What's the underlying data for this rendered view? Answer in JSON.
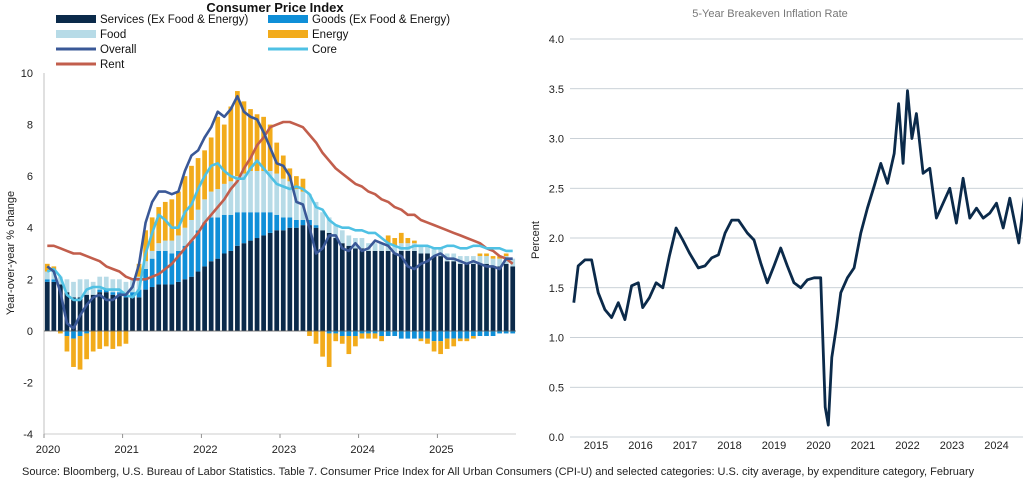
{
  "chart_data": [
    {
      "type": "bar",
      "title": "Consumer Price Index",
      "ylabel": "Year-over-year % change",
      "xlabel": "",
      "ylim": [
        -4,
        10
      ],
      "yticks": [
        -4,
        -2,
        0,
        2,
        4,
        6,
        8,
        10
      ],
      "xticks": [
        "2020",
        "2021",
        "2022",
        "2023",
        "2024",
        "2025"
      ],
      "x_start": "2020-01",
      "legend": [
        {
          "name": "Services (Ex Food & Energy)",
          "kind": "bar",
          "color": "#0b2a4a"
        },
        {
          "name": "Goods (Ex Food & Energy)",
          "kind": "bar",
          "color": "#0f8fd8"
        },
        {
          "name": "Food",
          "kind": "bar",
          "color": "#b7dbe7"
        },
        {
          "name": "Energy",
          "kind": "bar",
          "color": "#f2ab1b"
        },
        {
          "name": "Overall",
          "kind": "line",
          "color": "#3a5897"
        },
        {
          "name": "Core",
          "kind": "line",
          "color": "#4fc1e4"
        },
        {
          "name": "Rent",
          "kind": "line",
          "color": "#c25e4c"
        }
      ],
      "stacked_series": [
        {
          "name": "Services (Ex Food & Energy)",
          "color": "#0b2a4a",
          "values": [
            1.9,
            1.9,
            1.8,
            1.5,
            1.3,
            1.3,
            1.4,
            1.4,
            1.5,
            1.5,
            1.4,
            1.4,
            1.3,
            1.3,
            1.3,
            1.6,
            1.7,
            1.8,
            1.8,
            1.8,
            1.9,
            2.0,
            2.1,
            2.3,
            2.5,
            2.7,
            2.8,
            3.0,
            3.1,
            3.3,
            3.4,
            3.5,
            3.6,
            3.7,
            3.8,
            3.9,
            3.9,
            4.0,
            4.0,
            4.1,
            4.1,
            4.0,
            3.9,
            3.8,
            3.6,
            3.4,
            3.3,
            3.2,
            3.2,
            3.1,
            3.1,
            3.1,
            3.1,
            3.0,
            3.1,
            3.1,
            3.1,
            3.0,
            3.0,
            2.9,
            2.9,
            2.7,
            2.7,
            2.6,
            2.6,
            2.6,
            2.6,
            2.6,
            2.5,
            2.5,
            2.6,
            2.5
          ]
        },
        {
          "name": "Goods (Ex Food & Energy)",
          "color": "#0f8fd8",
          "values": [
            0.1,
            0.1,
            0.0,
            -0.2,
            -0.3,
            -0.2,
            -0.1,
            0.0,
            0.1,
            0.1,
            0.1,
            0.1,
            0.1,
            0.2,
            0.3,
            0.8,
            1.1,
            1.3,
            1.3,
            1.2,
            1.2,
            1.3,
            1.4,
            1.6,
            1.7,
            1.7,
            1.6,
            1.5,
            1.4,
            1.3,
            1.2,
            1.1,
            1.0,
            0.9,
            0.8,
            0.6,
            0.5,
            0.4,
            0.3,
            0.2,
            0.2,
            0.1,
            0.0,
            -0.1,
            -0.1,
            -0.2,
            -0.2,
            -0.2,
            -0.1,
            -0.1,
            -0.1,
            -0.2,
            -0.2,
            -0.2,
            -0.3,
            -0.3,
            -0.3,
            -0.3,
            -0.3,
            -0.4,
            -0.4,
            -0.3,
            -0.3,
            -0.3,
            -0.3,
            -0.2,
            -0.2,
            -0.2,
            -0.2,
            -0.1,
            -0.1,
            -0.1
          ]
        },
        {
          "name": "Food",
          "color": "#b7dbe7",
          "values": [
            0.3,
            0.3,
            0.3,
            0.5,
            0.6,
            0.7,
            0.6,
            0.5,
            0.5,
            0.5,
            0.5,
            0.5,
            0.5,
            0.5,
            0.5,
            0.3,
            0.3,
            0.3,
            0.4,
            0.5,
            0.6,
            0.7,
            0.8,
            0.8,
            0.9,
            1.0,
            1.1,
            1.2,
            1.3,
            1.4,
            1.5,
            1.6,
            1.6,
            1.6,
            1.6,
            1.6,
            1.5,
            1.4,
            1.2,
            1.1,
            1.0,
            0.9,
            0.7,
            0.6,
            0.5,
            0.5,
            0.4,
            0.4,
            0.4,
            0.3,
            0.3,
            0.3,
            0.3,
            0.3,
            0.3,
            0.3,
            0.3,
            0.3,
            0.3,
            0.3,
            0.3,
            0.3,
            0.3,
            0.3,
            0.3,
            0.3,
            0.3,
            0.3,
            0.3,
            0.3,
            0.3,
            0.3
          ]
        },
        {
          "name": "Energy",
          "color": "#f2ab1b",
          "values": [
            0.3,
            0.2,
            -0.1,
            -0.6,
            -1.1,
            -1.3,
            -1.0,
            -0.8,
            -0.7,
            -0.6,
            -0.7,
            -0.6,
            -0.5,
            0.0,
            0.5,
            1.2,
            1.3,
            1.4,
            1.5,
            1.6,
            1.7,
            2.0,
            2.1,
            2.0,
            1.9,
            2.1,
            2.8,
            2.3,
            2.9,
            3.3,
            2.8,
            2.4,
            2.2,
            2.1,
            1.8,
            1.2,
            0.9,
            0.5,
            0.5,
            0.5,
            -0.2,
            -0.5,
            -1.0,
            -1.3,
            -0.3,
            -0.3,
            -0.7,
            -0.4,
            -0.2,
            -0.2,
            -0.2,
            -0.2,
            0.3,
            0.3,
            0.4,
            0.2,
            0.1,
            -0.1,
            -0.2,
            -0.4,
            -0.5,
            -0.4,
            -0.3,
            -0.1,
            -0.1,
            -0.1,
            0.1,
            0.1,
            0.1,
            0.1,
            0.1,
            0.0
          ]
        }
      ],
      "line_series": [
        {
          "name": "Overall",
          "color": "#3a5897",
          "values": [
            2.5,
            2.3,
            1.5,
            0.3,
            0.1,
            0.6,
            1.0,
            1.3,
            1.4,
            1.2,
            1.2,
            1.4,
            1.4,
            1.7,
            2.6,
            4.2,
            5.0,
            5.4,
            5.4,
            5.3,
            5.4,
            6.2,
            6.8,
            7.0,
            7.5,
            7.9,
            8.5,
            8.3,
            8.6,
            9.1,
            8.5,
            8.3,
            8.2,
            7.7,
            7.1,
            6.5,
            6.4,
            6.0,
            5.0,
            4.9,
            4.0,
            3.0,
            3.2,
            3.7,
            3.7,
            3.2,
            3.1,
            3.4,
            3.1,
            3.2,
            3.5,
            3.4,
            3.3,
            3.0,
            2.9,
            2.5,
            2.4,
            2.6,
            2.7,
            2.9,
            3.0,
            2.8,
            2.8,
            2.7,
            2.6,
            2.7,
            2.6,
            2.5,
            2.5,
            2.4,
            2.8,
            2.8
          ]
        },
        {
          "name": "Core",
          "color": "#4fc1e4",
          "values": [
            2.3,
            2.4,
            2.1,
            1.4,
            1.2,
            1.2,
            1.6,
            1.7,
            1.7,
            1.6,
            1.6,
            1.6,
            1.4,
            1.3,
            1.6,
            3.0,
            3.8,
            4.5,
            4.3,
            4.0,
            4.0,
            4.6,
            4.9,
            5.5,
            6.0,
            6.4,
            6.5,
            6.2,
            6.0,
            5.9,
            5.9,
            6.3,
            6.6,
            6.3,
            6.0,
            5.7,
            5.6,
            5.5,
            5.6,
            5.5,
            5.3,
            4.8,
            4.7,
            4.3,
            4.1,
            4.0,
            4.0,
            3.9,
            3.9,
            3.8,
            3.8,
            3.6,
            3.4,
            3.3,
            3.2,
            3.2,
            3.3,
            3.3,
            3.3,
            3.2,
            3.2,
            3.3,
            3.3,
            3.2,
            3.2,
            3.3,
            3.3,
            3.2,
            3.2,
            3.2,
            3.1,
            3.1
          ]
        },
        {
          "name": "Rent",
          "color": "#c25e4c",
          "values": [
            3.3,
            3.3,
            3.2,
            3.1,
            3.0,
            3.0,
            2.9,
            2.8,
            2.7,
            2.5,
            2.4,
            2.3,
            2.1,
            2.0,
            2.0,
            2.0,
            2.1,
            2.2,
            2.4,
            2.6,
            2.9,
            3.2,
            3.5,
            3.8,
            4.2,
            4.5,
            4.8,
            5.1,
            5.5,
            5.8,
            6.3,
            6.7,
            7.2,
            7.5,
            7.9,
            8.0,
            8.1,
            8.1,
            8.0,
            7.9,
            7.6,
            7.3,
            6.9,
            6.6,
            6.3,
            6.1,
            5.9,
            5.7,
            5.6,
            5.4,
            5.3,
            5.1,
            5.0,
            4.8,
            4.7,
            4.5,
            4.5,
            4.3,
            4.2,
            4.1,
            4.0,
            3.9,
            3.8,
            3.7,
            3.6,
            3.5,
            3.4,
            3.2,
            3.1,
            2.9,
            2.8,
            2.6
          ]
        }
      ]
    },
    {
      "type": "line",
      "title": "5-Year Breakeven Inflation Rate",
      "xlabel": "",
      "ylabel": "Percent",
      "ylim": [
        0.0,
        4.0
      ],
      "yticks": [
        "0.0",
        "0.5",
        "1.0",
        "1.5",
        "2.0",
        "2.5",
        "3.0",
        "3.5",
        "4.0"
      ],
      "xticks": [
        "2015",
        "2016",
        "2017",
        "2018",
        "2019",
        "2020",
        "2021",
        "2022",
        "2023",
        "2024"
      ],
      "grid": "horizontal",
      "color": "#0b2a4a",
      "series": [
        {
          "x": [
            2014.5,
            2014.6,
            2014.75,
            2014.9,
            2015.05,
            2015.2,
            2015.35,
            2015.5,
            2015.65,
            2015.8,
            2015.95,
            2016.05,
            2016.2,
            2016.35,
            2016.5,
            2016.65,
            2016.8,
            2016.95,
            2017.1,
            2017.3,
            2017.45,
            2017.6,
            2017.75,
            2017.9,
            2018.05,
            2018.2,
            2018.4,
            2018.55,
            2018.7,
            2018.85,
            2019.0,
            2019.15,
            2019.3,
            2019.45,
            2019.6,
            2019.75,
            2019.9,
            2020.05,
            2020.15,
            2020.22,
            2020.3,
            2020.4,
            2020.5,
            2020.65,
            2020.8,
            2020.95,
            2021.1,
            2021.25,
            2021.4,
            2021.55,
            2021.7,
            2021.8,
            2021.9,
            2022.0,
            2022.1,
            2022.2,
            2022.35,
            2022.5,
            2022.65,
            2022.8,
            2022.95,
            2023.1,
            2023.25,
            2023.4,
            2023.55,
            2023.7,
            2023.85,
            2024.0,
            2024.15,
            2024.3,
            2024.5,
            2024.65
          ],
          "y": [
            1.35,
            1.72,
            1.78,
            1.78,
            1.45,
            1.28,
            1.2,
            1.35,
            1.18,
            1.52,
            1.55,
            1.3,
            1.4,
            1.55,
            1.5,
            1.82,
            2.1,
            1.98,
            1.85,
            1.7,
            1.72,
            1.8,
            1.83,
            2.05,
            2.18,
            2.18,
            2.05,
            1.98,
            1.75,
            1.55,
            1.72,
            1.9,
            1.72,
            1.55,
            1.5,
            1.58,
            1.6,
            1.6,
            0.3,
            0.12,
            0.8,
            1.1,
            1.45,
            1.6,
            1.7,
            2.05,
            2.3,
            2.52,
            2.75,
            2.55,
            2.85,
            3.35,
            2.75,
            3.48,
            3.0,
            3.25,
            2.65,
            2.7,
            2.2,
            2.35,
            2.5,
            2.15,
            2.6,
            2.2,
            2.3,
            2.2,
            2.25,
            2.35,
            2.1,
            2.4,
            1.95,
            2.5
          ]
        }
      ]
    }
  ],
  "source": "Source: Bloomberg, U.S. Bureau of Labor Statistics. Table 7. Consumer Price Index for All Urban Consumers (CPI-U) and selected categories: U.S. city average, by expenditure category, February"
}
